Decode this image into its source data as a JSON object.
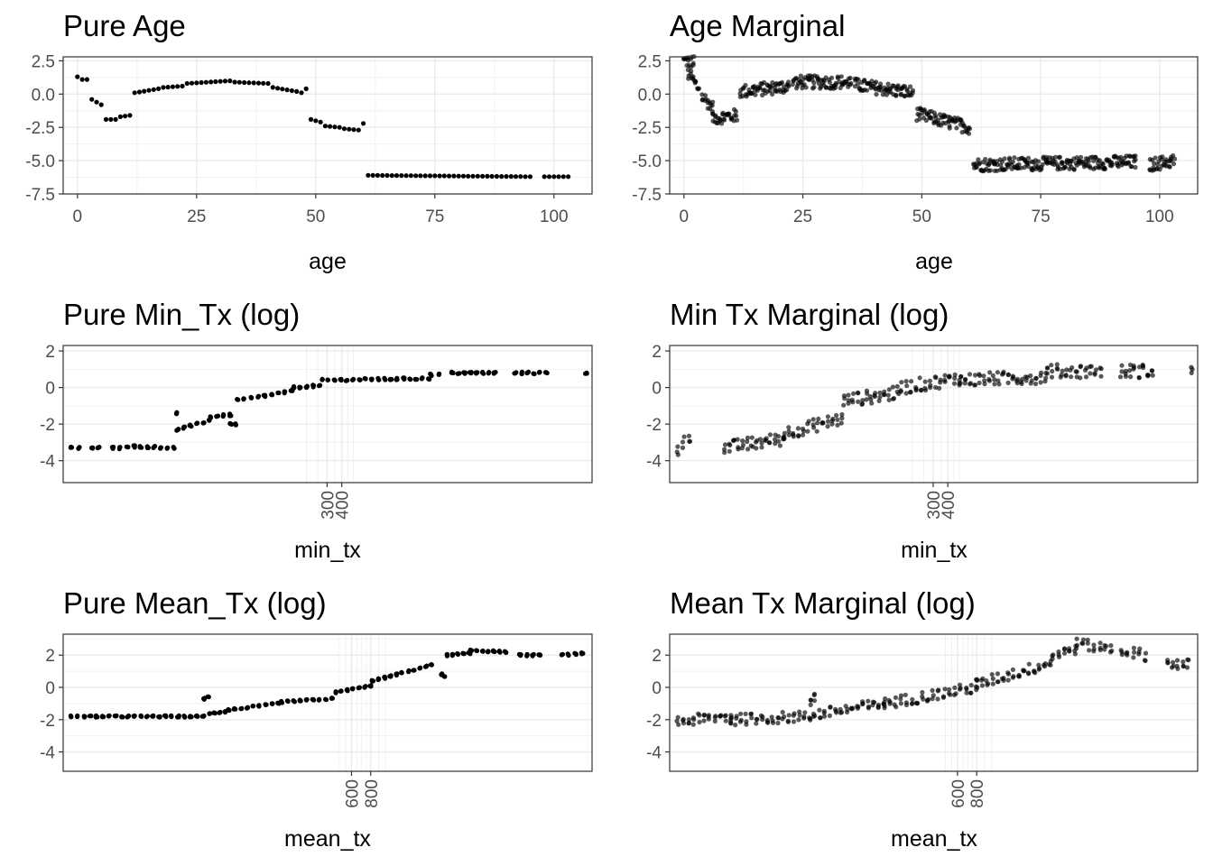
{
  "chart_data": [
    {
      "id": "pure-age",
      "type": "scatter",
      "title": "Pure Age",
      "xlabel": "age",
      "ylabel": "",
      "xscale": "linear",
      "xlim": [
        -3,
        108
      ],
      "ylim": [
        -7.5,
        2.8
      ],
      "xticks": [
        0,
        25,
        50,
        75,
        100
      ],
      "xtick_labels": [
        "0",
        "25",
        "50",
        "75",
        "100"
      ],
      "yticks": [
        2.5,
        0,
        -2.5,
        -5,
        -7.5
      ],
      "ytick_labels": [
        "2.5",
        "0.0",
        "-2.5",
        "-5.0",
        "-7.5"
      ],
      "point_opacity": 1,
      "segments": [
        [
          0,
          1.3,
          0,
          1.3
        ],
        [
          1,
          1.1,
          2,
          1.1
        ],
        [
          3,
          -0.4,
          4,
          -0.6
        ],
        [
          5,
          -0.8,
          5,
          -0.8
        ],
        [
          6,
          -1.9,
          8,
          -1.9
        ],
        [
          9,
          -1.7,
          11,
          -1.6
        ],
        [
          12,
          0.1,
          17,
          0.4
        ],
        [
          18,
          0.5,
          22,
          0.6
        ],
        [
          23,
          0.8,
          32,
          1.0
        ],
        [
          33,
          0.9,
          40,
          0.8
        ],
        [
          41,
          0.5,
          46,
          0.2
        ],
        [
          47,
          0.1,
          48,
          0.4
        ],
        [
          49,
          -1.9,
          51,
          -2.1
        ],
        [
          52,
          -2.4,
          55,
          -2.5
        ],
        [
          56,
          -2.6,
          59,
          -2.7
        ],
        [
          60,
          -2.2,
          60,
          -2.2
        ],
        [
          61,
          -6.1,
          95,
          -6.2
        ],
        [
          98,
          -6.2,
          103,
          -6.2
        ]
      ],
      "step": 1,
      "jitter": 0
    },
    {
      "id": "age-marginal",
      "type": "scatter",
      "title": "Age Marginal",
      "xlabel": "age",
      "ylabel": "",
      "xscale": "linear",
      "xlim": [
        -3,
        108
      ],
      "ylim": [
        -7.5,
        2.8
      ],
      "xticks": [
        0,
        25,
        50,
        75,
        100
      ],
      "xtick_labels": [
        "0",
        "25",
        "50",
        "75",
        "100"
      ],
      "yticks": [
        2.5,
        0,
        -2.5,
        -5,
        -7.5
      ],
      "ytick_labels": [
        "2.5",
        "0.0",
        "-2.5",
        "-5.0",
        "-7.5"
      ],
      "point_opacity": 0.65,
      "segments": [
        [
          0,
          2.5,
          2,
          2.4
        ],
        [
          1,
          1.5,
          3,
          0.5
        ],
        [
          4,
          -0.2,
          6,
          -1.0
        ],
        [
          6,
          -1.8,
          11,
          -1.6
        ],
        [
          12,
          0.2,
          22,
          0.6
        ],
        [
          23,
          0.9,
          35,
          0.9
        ],
        [
          36,
          0.7,
          48,
          0.1
        ],
        [
          49,
          -1.5,
          60,
          -2.5
        ],
        [
          61,
          -5.3,
          95,
          -5.1
        ],
        [
          98,
          -5.3,
          103,
          -5.0
        ]
      ],
      "step": 0.5,
      "jitter": 1.0
    },
    {
      "id": "pure-min-tx",
      "type": "scatter",
      "title": "Pure Min_Tx (log)",
      "xlabel": "min_tx",
      "ylabel": "",
      "xscale": "log",
      "xlim": [
        1.7,
        54000
      ],
      "ylim": [
        -5.2,
        2.3
      ],
      "xticks": [
        300,
        400
      ],
      "xtick_labels": [
        "300",
        "400"
      ],
      "xgrid_minor": [
        200,
        250,
        300,
        350,
        400,
        450,
        500
      ],
      "yticks": [
        2,
        0,
        -2,
        -4
      ],
      "ytick_labels": [
        "2",
        "0",
        "-2",
        "-4"
      ],
      "point_opacity": 1,
      "segments": [
        [
          2,
          -3.3,
          2.3,
          -3.3
        ],
        [
          3,
          -3.3,
          3.4,
          -3.3
        ],
        [
          4.5,
          -3.3,
          5.2,
          -3.3
        ],
        [
          6,
          -3.2,
          15,
          -3.3
        ],
        [
          15.5,
          -1.4,
          15.5,
          -1.4
        ],
        [
          16,
          -2.3,
          30,
          -1.8
        ],
        [
          30.5,
          -1.6,
          45,
          -1.5
        ],
        [
          45.5,
          -2.0,
          50,
          -2.0
        ],
        [
          52,
          -0.7,
          150,
          -0.2
        ],
        [
          155,
          0,
          260,
          0.1
        ],
        [
          270,
          0.4,
          2200,
          0.5
        ],
        [
          2300,
          0.7,
          2700,
          0.7
        ],
        [
          3500,
          0.8,
          8000,
          0.8
        ],
        [
          12000,
          0.8,
          22000,
          0.8
        ],
        [
          48000,
          0.8,
          48000,
          0.8
        ]
      ],
      "step": 0.055,
      "jitter": 0.12
    },
    {
      "id": "min-tx-marginal",
      "type": "scatter",
      "title": "Min Tx Marginal (log)",
      "xlabel": "min_tx",
      "ylabel": "",
      "xscale": "log",
      "xlim": [
        1.7,
        54000
      ],
      "ylim": [
        -5.2,
        2.3
      ],
      "xticks": [
        300,
        400
      ],
      "xtick_labels": [
        "300",
        "400"
      ],
      "xgrid_minor": [
        200,
        250,
        300,
        350,
        400,
        450,
        500
      ],
      "yticks": [
        2,
        0,
        -2,
        -4
      ],
      "ytick_labels": [
        "2",
        "0",
        "-2",
        "-4"
      ],
      "point_opacity": 0.65,
      "segments": [
        [
          2,
          -3.4,
          2.5,
          -2.6
        ],
        [
          5,
          -3.3,
          16,
          -2.8
        ],
        [
          16,
          -2.5,
          50,
          -1.7
        ],
        [
          52,
          -0.7,
          150,
          -0.3
        ],
        [
          160,
          0,
          500,
          0.5
        ],
        [
          520,
          0.4,
          2700,
          0.6
        ],
        [
          2800,
          0.9,
          8000,
          0.9
        ],
        [
          12000,
          0.9,
          22000,
          0.9
        ],
        [
          48000,
          0.9,
          48000,
          0.9
        ]
      ],
      "step": 0.04,
      "jitter": 0.75
    },
    {
      "id": "pure-mean-tx",
      "type": "scatter",
      "title": "Pure Mean_Tx (log)",
      "xlabel": "mean_tx",
      "ylabel": "",
      "xscale": "log",
      "xlim": [
        8,
        22000
      ],
      "ylim": [
        -5.2,
        3.3
      ],
      "xticks": [
        600,
        800
      ],
      "xtick_labels": [
        "600",
        "800"
      ],
      "xgrid_minor": [
        500,
        550,
        600,
        650,
        700,
        750,
        800,
        900,
        1000
      ],
      "yticks": [
        2,
        0,
        -2,
        -4
      ],
      "ytick_labels": [
        "2",
        "0",
        "-2",
        "-4"
      ],
      "point_opacity": 1,
      "segments": [
        [
          9,
          -1.8,
          9,
          -1.8
        ],
        [
          10,
          -1.8,
          65,
          -1.8
        ],
        [
          66,
          -0.7,
          70,
          -0.6
        ],
        [
          71,
          -1.6,
          90,
          -1.5
        ],
        [
          95,
          -1.4,
          200,
          -1.0
        ],
        [
          210,
          -0.9,
          450,
          -0.7
        ],
        [
          470,
          -0.3,
          800,
          0.1
        ],
        [
          820,
          0.4,
          2000,
          1.4
        ],
        [
          2300,
          0.8,
          2400,
          0.7
        ],
        [
          2500,
          2.0,
          3500,
          2.1
        ],
        [
          3600,
          2.3,
          6000,
          2.2
        ],
        [
          7500,
          2.0,
          10000,
          2.0
        ],
        [
          14000,
          2.0,
          19000,
          2.1
        ]
      ],
      "step": 0.04,
      "jitter": 0.1
    },
    {
      "id": "mean-tx-marginal",
      "type": "scatter",
      "title": "Mean Tx Marginal (log)",
      "xlabel": "mean_tx",
      "ylabel": "",
      "xscale": "log",
      "xlim": [
        8,
        22000
      ],
      "ylim": [
        -5.2,
        3.3
      ],
      "xticks": [
        600,
        800
      ],
      "xtick_labels": [
        "600",
        "800"
      ],
      "xgrid_minor": [
        500,
        550,
        600,
        650,
        700,
        750,
        800,
        900,
        1000
      ],
      "yticks": [
        2,
        0,
        -2,
        -4
      ],
      "ytick_labels": [
        "2",
        "0",
        "-2",
        "-4"
      ],
      "point_opacity": 0.65,
      "segments": [
        [
          9,
          -2.1,
          20,
          -1.8
        ],
        [
          20,
          -2.0,
          65,
          -1.8
        ],
        [
          66,
          -0.8,
          70,
          -0.6
        ],
        [
          70,
          -1.7,
          200,
          -1.0
        ],
        [
          200,
          -1.0,
          800,
          0.0
        ],
        [
          800,
          0.2,
          2400,
          1.5
        ],
        [
          2500,
          2.0,
          3500,
          2.4
        ],
        [
          3600,
          2.7,
          6000,
          2.4
        ],
        [
          7000,
          2.3,
          10000,
          2.0
        ],
        [
          14000,
          1.5,
          19000,
          1.4
        ]
      ],
      "step": 0.035,
      "jitter": 0.7
    }
  ]
}
